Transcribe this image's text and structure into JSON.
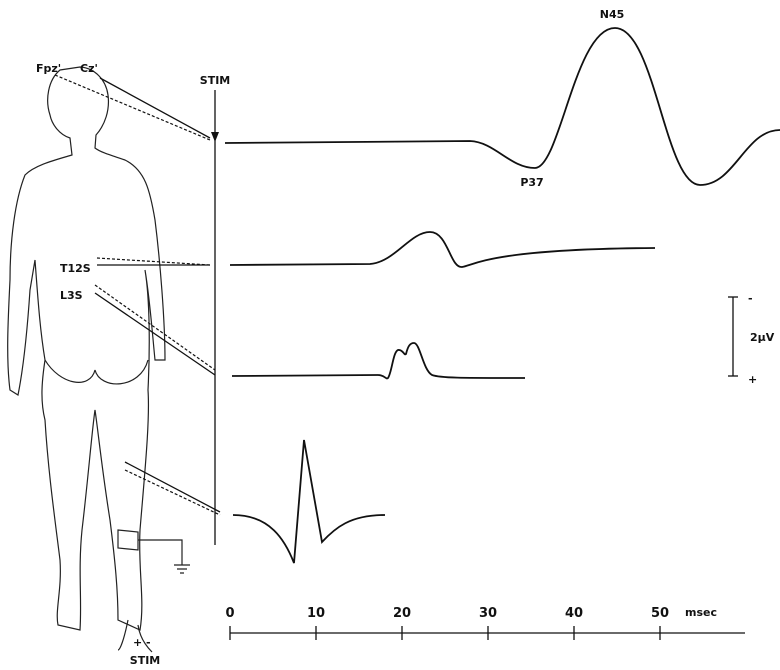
{
  "stimulus_label": "STIM",
  "electrodes": {
    "fpz": "Fpz'",
    "cz": "Cz'",
    "t12": "T12S",
    "l3": "L3S"
  },
  "peaks": {
    "n45": "N45",
    "p37": "P37"
  },
  "scale_bar": {
    "top": "-",
    "value": "2μV",
    "bottom": "+"
  },
  "time_axis": {
    "ticks": [
      "0",
      "10",
      "20",
      "30",
      "40",
      "50"
    ],
    "unit": "msec"
  },
  "leg_stimulus": {
    "polarity": "+ -",
    "label": "STIM"
  }
}
